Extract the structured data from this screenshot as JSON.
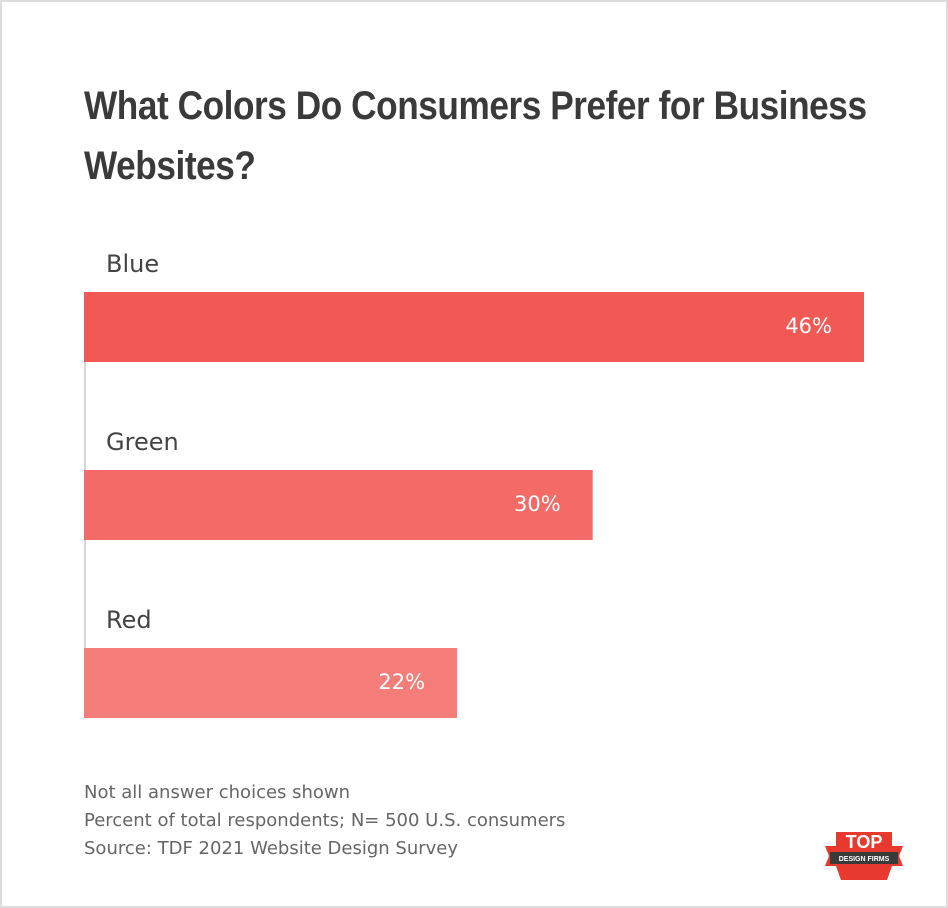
{
  "chart_data": {
    "type": "hbar",
    "title": "What Colors Do Consumers Prefer for Business Websites?",
    "categories": [
      "Blue",
      "Green",
      "Red"
    ],
    "values": [
      46,
      30,
      22
    ],
    "value_labels": [
      "46%",
      "30%",
      "22%"
    ],
    "colors": [
      "#f25854",
      "#f46a66",
      "#f47d79"
    ],
    "notes": [
      "Not all answer choices shown",
      "Percent of total respondents; N= 500 U.S. consumers",
      "Source: TDF 2021 Website Design Survey"
    ]
  },
  "logo": {
    "title": "TOP",
    "subtitle": "DESIGN FIRMS"
  }
}
